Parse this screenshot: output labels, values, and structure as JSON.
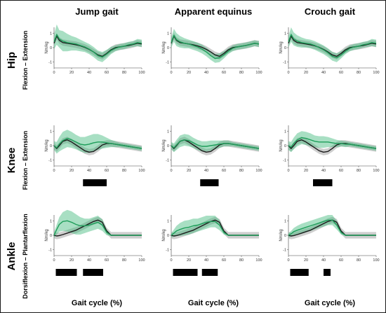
{
  "columns": [
    "Jump gait",
    "Apparent equinus",
    "Crouch gait"
  ],
  "rows": [
    {
      "title": "Hip",
      "subtitle": "Flexion – Extension"
    },
    {
      "title": "Knee",
      "subtitle": "Flexion – Extension"
    },
    {
      "title": "Ankle",
      "subtitle": "Dorsiflexion – Plantarflexion"
    }
  ],
  "xlabel": "Gait cycle (%)",
  "ylabel": "Nm/kg",
  "colors": {
    "reference": "#1c1c1c",
    "reference_band": "#bdbdbd",
    "group": "#1e9e5a",
    "group_band": "#3db87a"
  },
  "chart_data": {
    "type": "line",
    "xlim": [
      0,
      100
    ],
    "xticks": [
      0,
      20,
      40,
      60,
      80,
      100
    ],
    "ylim": [
      -1.4,
      1.4
    ],
    "yticks": [
      -1,
      0,
      1
    ],
    "panels": [
      {
        "column": "Jump gait",
        "row": "Hip",
        "x": [
          0,
          3,
          6,
          10,
          15,
          20,
          25,
          30,
          35,
          40,
          45,
          50,
          55,
          60,
          65,
          70,
          75,
          80,
          85,
          90,
          95,
          100
        ],
        "reference": [
          0.3,
          0.8,
          0.5,
          0.35,
          0.3,
          0.25,
          0.2,
          0.12,
          0.02,
          -0.12,
          -0.3,
          -0.5,
          -0.6,
          -0.4,
          -0.15,
          0,
          0.05,
          0.1,
          0.15,
          0.22,
          0.3,
          0.25
        ],
        "group": [
          0.4,
          0.9,
          0.6,
          0.45,
          0.35,
          0.3,
          0.25,
          0.15,
          0.05,
          -0.1,
          -0.3,
          -0.55,
          -0.65,
          -0.45,
          -0.2,
          -0.05,
          0.05,
          0.1,
          0.2,
          0.25,
          0.35,
          0.3
        ],
        "group_band_halfwidth": [
          0.5,
          0.7,
          0.6,
          0.7,
          0.6,
          0.5,
          0.45,
          0.4,
          0.35,
          0.35,
          0.35,
          0.35,
          0.35,
          0.3,
          0.25,
          0.2,
          0.2,
          0.2,
          0.2,
          0.2,
          0.25,
          0.25
        ],
        "significance_bars": []
      },
      {
        "column": "Apparent equinus",
        "row": "Hip",
        "x": [
          0,
          3,
          6,
          10,
          15,
          20,
          25,
          30,
          35,
          40,
          45,
          50,
          55,
          60,
          65,
          70,
          75,
          80,
          85,
          90,
          95,
          100
        ],
        "reference": [
          0.3,
          0.8,
          0.5,
          0.35,
          0.3,
          0.25,
          0.2,
          0.12,
          0.02,
          -0.12,
          -0.3,
          -0.5,
          -0.6,
          -0.4,
          -0.15,
          0,
          0.05,
          0.1,
          0.15,
          0.22,
          0.3,
          0.25
        ],
        "group": [
          0.35,
          0.85,
          0.55,
          0.4,
          0.3,
          0.25,
          0.15,
          0.05,
          -0.1,
          -0.3,
          -0.55,
          -0.75,
          -0.7,
          -0.5,
          -0.25,
          -0.05,
          0.05,
          0.1,
          0.15,
          0.22,
          0.3,
          0.25
        ],
        "group_band_halfwidth": [
          0.35,
          0.45,
          0.45,
          0.4,
          0.35,
          0.3,
          0.3,
          0.3,
          0.3,
          0.3,
          0.3,
          0.3,
          0.3,
          0.25,
          0.2,
          0.2,
          0.2,
          0.2,
          0.2,
          0.2,
          0.2,
          0.2
        ],
        "significance_bars": []
      },
      {
        "column": "Crouch gait",
        "row": "Hip",
        "x": [
          0,
          3,
          6,
          10,
          15,
          20,
          25,
          30,
          35,
          40,
          45,
          50,
          55,
          60,
          65,
          70,
          75,
          80,
          85,
          90,
          95,
          100
        ],
        "reference": [
          0.3,
          0.8,
          0.5,
          0.35,
          0.3,
          0.25,
          0.2,
          0.12,
          0.02,
          -0.12,
          -0.3,
          -0.5,
          -0.6,
          -0.4,
          -0.15,
          0,
          0.05,
          0.1,
          0.15,
          0.22,
          0.3,
          0.25
        ],
        "group": [
          0.4,
          0.9,
          0.6,
          0.45,
          0.35,
          0.3,
          0.25,
          0.15,
          0,
          -0.15,
          -0.35,
          -0.6,
          -0.7,
          -0.5,
          -0.25,
          -0.05,
          0.05,
          0.1,
          0.2,
          0.25,
          0.35,
          0.3
        ],
        "group_band_halfwidth": [
          0.4,
          0.5,
          0.45,
          0.4,
          0.35,
          0.3,
          0.3,
          0.3,
          0.3,
          0.3,
          0.3,
          0.3,
          0.3,
          0.25,
          0.2,
          0.2,
          0.2,
          0.2,
          0.2,
          0.2,
          0.25,
          0.25
        ],
        "significance_bars": []
      },
      {
        "column": "Jump gait",
        "row": "Knee",
        "x": [
          0,
          3,
          6,
          10,
          15,
          20,
          25,
          30,
          35,
          40,
          45,
          50,
          55,
          60,
          65,
          70,
          75,
          80,
          85,
          90,
          95,
          100
        ],
        "reference": [
          0,
          -0.2,
          0,
          0.3,
          0.4,
          0.25,
          0.05,
          -0.15,
          -0.35,
          -0.45,
          -0.4,
          -0.2,
          0.05,
          0.15,
          0.15,
          0.1,
          0.05,
          0,
          -0.05,
          -0.1,
          -0.15,
          -0.2
        ],
        "group": [
          0,
          -0.15,
          0.1,
          0.35,
          0.5,
          0.4,
          0.25,
          0.1,
          0.05,
          0.1,
          0.2,
          0.25,
          0.25,
          0.2,
          0.15,
          0.1,
          0.05,
          0,
          -0.05,
          -0.1,
          -0.15,
          -0.2
        ],
        "group_band_halfwidth": [
          0.3,
          0.4,
          0.5,
          0.6,
          0.6,
          0.55,
          0.5,
          0.5,
          0.55,
          0.6,
          0.6,
          0.55,
          0.45,
          0.35,
          0.25,
          0.2,
          0.15,
          0.15,
          0.15,
          0.15,
          0.15,
          0.15
        ],
        "significance_bars": [
          [
            33,
            60
          ]
        ]
      },
      {
        "column": "Apparent equinus",
        "row": "Knee",
        "x": [
          0,
          3,
          6,
          10,
          15,
          20,
          25,
          30,
          35,
          40,
          45,
          50,
          55,
          60,
          65,
          70,
          75,
          80,
          85,
          90,
          95,
          100
        ],
        "reference": [
          0,
          -0.2,
          0,
          0.3,
          0.4,
          0.25,
          0.05,
          -0.15,
          -0.35,
          -0.45,
          -0.4,
          -0.2,
          0.05,
          0.15,
          0.15,
          0.1,
          0.05,
          0,
          -0.05,
          -0.1,
          -0.15,
          -0.2
        ],
        "group": [
          0,
          -0.15,
          0.05,
          0.3,
          0.4,
          0.35,
          0.2,
          0.05,
          -0.05,
          -0.05,
          0,
          0.05,
          0.1,
          0.15,
          0.15,
          0.1,
          0.05,
          0,
          -0.05,
          -0.1,
          -0.15,
          -0.2
        ],
        "group_band_halfwidth": [
          0.25,
          0.3,
          0.35,
          0.4,
          0.4,
          0.4,
          0.35,
          0.35,
          0.35,
          0.35,
          0.35,
          0.3,
          0.25,
          0.2,
          0.2,
          0.15,
          0.15,
          0.15,
          0.15,
          0.15,
          0.15,
          0.15
        ],
        "significance_bars": [
          [
            33,
            54
          ]
        ]
      },
      {
        "column": "Crouch gait",
        "row": "Knee",
        "x": [
          0,
          3,
          6,
          10,
          15,
          20,
          25,
          30,
          35,
          40,
          45,
          50,
          55,
          60,
          65,
          70,
          75,
          80,
          85,
          90,
          95,
          100
        ],
        "reference": [
          0,
          -0.2,
          0,
          0.3,
          0.4,
          0.25,
          0.05,
          -0.15,
          -0.35,
          -0.45,
          -0.4,
          -0.2,
          0.05,
          0.15,
          0.15,
          0.1,
          0.05,
          0,
          -0.05,
          -0.1,
          -0.15,
          -0.2
        ],
        "group": [
          0,
          -0.1,
          0.15,
          0.4,
          0.55,
          0.5,
          0.4,
          0.3,
          0.25,
          0.25,
          0.25,
          0.2,
          0.15,
          0.15,
          0.1,
          0.1,
          0.05,
          0,
          -0.05,
          -0.1,
          -0.15,
          -0.2
        ],
        "group_band_halfwidth": [
          0.3,
          0.35,
          0.4,
          0.45,
          0.45,
          0.45,
          0.45,
          0.4,
          0.4,
          0.4,
          0.35,
          0.3,
          0.25,
          0.2,
          0.2,
          0.15,
          0.15,
          0.15,
          0.15,
          0.15,
          0.15,
          0.15
        ],
        "significance_bars": [
          [
            28,
            50
          ]
        ]
      },
      {
        "column": "Jump gait",
        "row": "Ankle",
        "x": [
          0,
          3,
          6,
          10,
          15,
          20,
          25,
          30,
          35,
          40,
          45,
          50,
          55,
          60,
          65,
          70,
          75,
          80,
          85,
          90,
          95,
          100
        ],
        "reference": [
          0,
          -0.05,
          -0.02,
          0.05,
          0.15,
          0.25,
          0.35,
          0.5,
          0.65,
          0.8,
          0.95,
          1.05,
          0.9,
          0.3,
          0,
          0,
          0,
          0,
          0,
          0,
          0,
          0
        ],
        "group": [
          0,
          0.4,
          0.75,
          0.95,
          1,
          0.9,
          0.75,
          0.65,
          0.65,
          0.7,
          0.8,
          0.9,
          0.7,
          0.2,
          0,
          0,
          0,
          0,
          0,
          0,
          0,
          0
        ],
        "group_band_halfwidth": [
          0.2,
          0.35,
          0.5,
          0.65,
          0.75,
          0.75,
          0.7,
          0.6,
          0.5,
          0.45,
          0.45,
          0.45,
          0.4,
          0.2,
          0.05,
          0.03,
          0.03,
          0.03,
          0.03,
          0.03,
          0.03,
          0.03
        ],
        "significance_bars": [
          [
            2,
            26
          ],
          [
            33,
            56
          ]
        ]
      },
      {
        "column": "Apparent equinus",
        "row": "Ankle",
        "x": [
          0,
          3,
          6,
          10,
          15,
          20,
          25,
          30,
          35,
          40,
          45,
          50,
          55,
          60,
          65,
          70,
          75,
          80,
          85,
          90,
          95,
          100
        ],
        "reference": [
          0,
          -0.05,
          -0.02,
          0.05,
          0.15,
          0.25,
          0.35,
          0.5,
          0.65,
          0.8,
          0.95,
          1.05,
          0.9,
          0.3,
          0,
          0,
          0,
          0,
          0,
          0,
          0,
          0
        ],
        "group": [
          0,
          0.15,
          0.3,
          0.4,
          0.5,
          0.55,
          0.65,
          0.7,
          0.8,
          0.9,
          0.95,
          0.95,
          0.7,
          0.2,
          0,
          0,
          0,
          0,
          0,
          0,
          0,
          0
        ],
        "group_band_halfwidth": [
          0.15,
          0.25,
          0.35,
          0.45,
          0.5,
          0.5,
          0.5,
          0.45,
          0.45,
          0.45,
          0.4,
          0.4,
          0.35,
          0.15,
          0.05,
          0.03,
          0.03,
          0.03,
          0.03,
          0.03,
          0.03,
          0.03
        ],
        "significance_bars": [
          [
            2,
            30
          ],
          [
            35,
            53
          ]
        ]
      },
      {
        "column": "Crouch gait",
        "row": "Ankle",
        "x": [
          0,
          3,
          6,
          10,
          15,
          20,
          25,
          30,
          35,
          40,
          45,
          50,
          55,
          60,
          65,
          70,
          75,
          80,
          85,
          90,
          95,
          100
        ],
        "reference": [
          0,
          -0.05,
          -0.02,
          0.05,
          0.15,
          0.25,
          0.35,
          0.5,
          0.65,
          0.8,
          0.95,
          1.05,
          0.9,
          0.3,
          0,
          0,
          0,
          0,
          0,
          0,
          0,
          0
        ],
        "group": [
          0,
          0.1,
          0.25,
          0.35,
          0.45,
          0.55,
          0.65,
          0.75,
          0.85,
          0.95,
          1.05,
          1.05,
          0.7,
          0.2,
          0,
          0,
          0,
          0,
          0,
          0,
          0,
          0
        ],
        "group_band_halfwidth": [
          0.15,
          0.2,
          0.25,
          0.3,
          0.35,
          0.35,
          0.35,
          0.35,
          0.35,
          0.35,
          0.35,
          0.35,
          0.3,
          0.15,
          0.05,
          0.03,
          0.03,
          0.03,
          0.03,
          0.03,
          0.03,
          0.03
        ],
        "significance_bars": [
          [
            2,
            23
          ],
          [
            40,
            48
          ]
        ]
      }
    ]
  }
}
